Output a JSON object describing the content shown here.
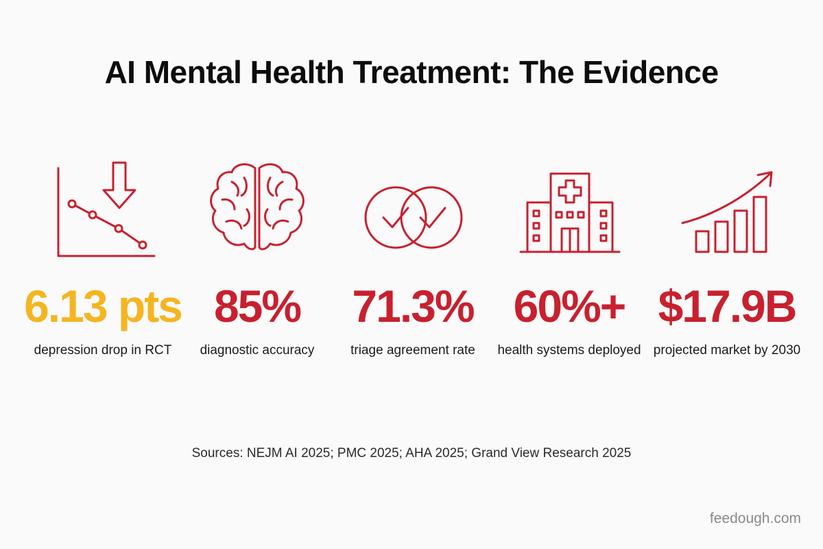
{
  "title": "AI Mental Health Treatment: The Evidence",
  "stats": [
    {
      "value": "6.13 pts",
      "label": "depression drop in RCT",
      "icon": "declining-line-chart-icon",
      "color": "#f5b521"
    },
    {
      "value": "85%",
      "label": "diagnostic accuracy",
      "icon": "brain-icon",
      "color": "#c8202e"
    },
    {
      "value": "71.3%",
      "label": "triage agreement rate",
      "icon": "overlapping-checkmark-circles-icon",
      "color": "#c8202e"
    },
    {
      "value": "60%+",
      "label": "health systems deployed",
      "icon": "hospital-building-icon",
      "color": "#c8202e"
    },
    {
      "value": "$17.9B",
      "label": "projected market by 2030",
      "icon": "rising-bar-chart-icon",
      "color": "#c8202e"
    }
  ],
  "sources": "Sources: NEJM AI 2025; PMC 2025; AHA 2025; Grand View Research 2025",
  "brand": "feedough.com",
  "colors": {
    "accent": "#c8202e",
    "highlight": "#f5b521",
    "background": "#fafafa"
  }
}
